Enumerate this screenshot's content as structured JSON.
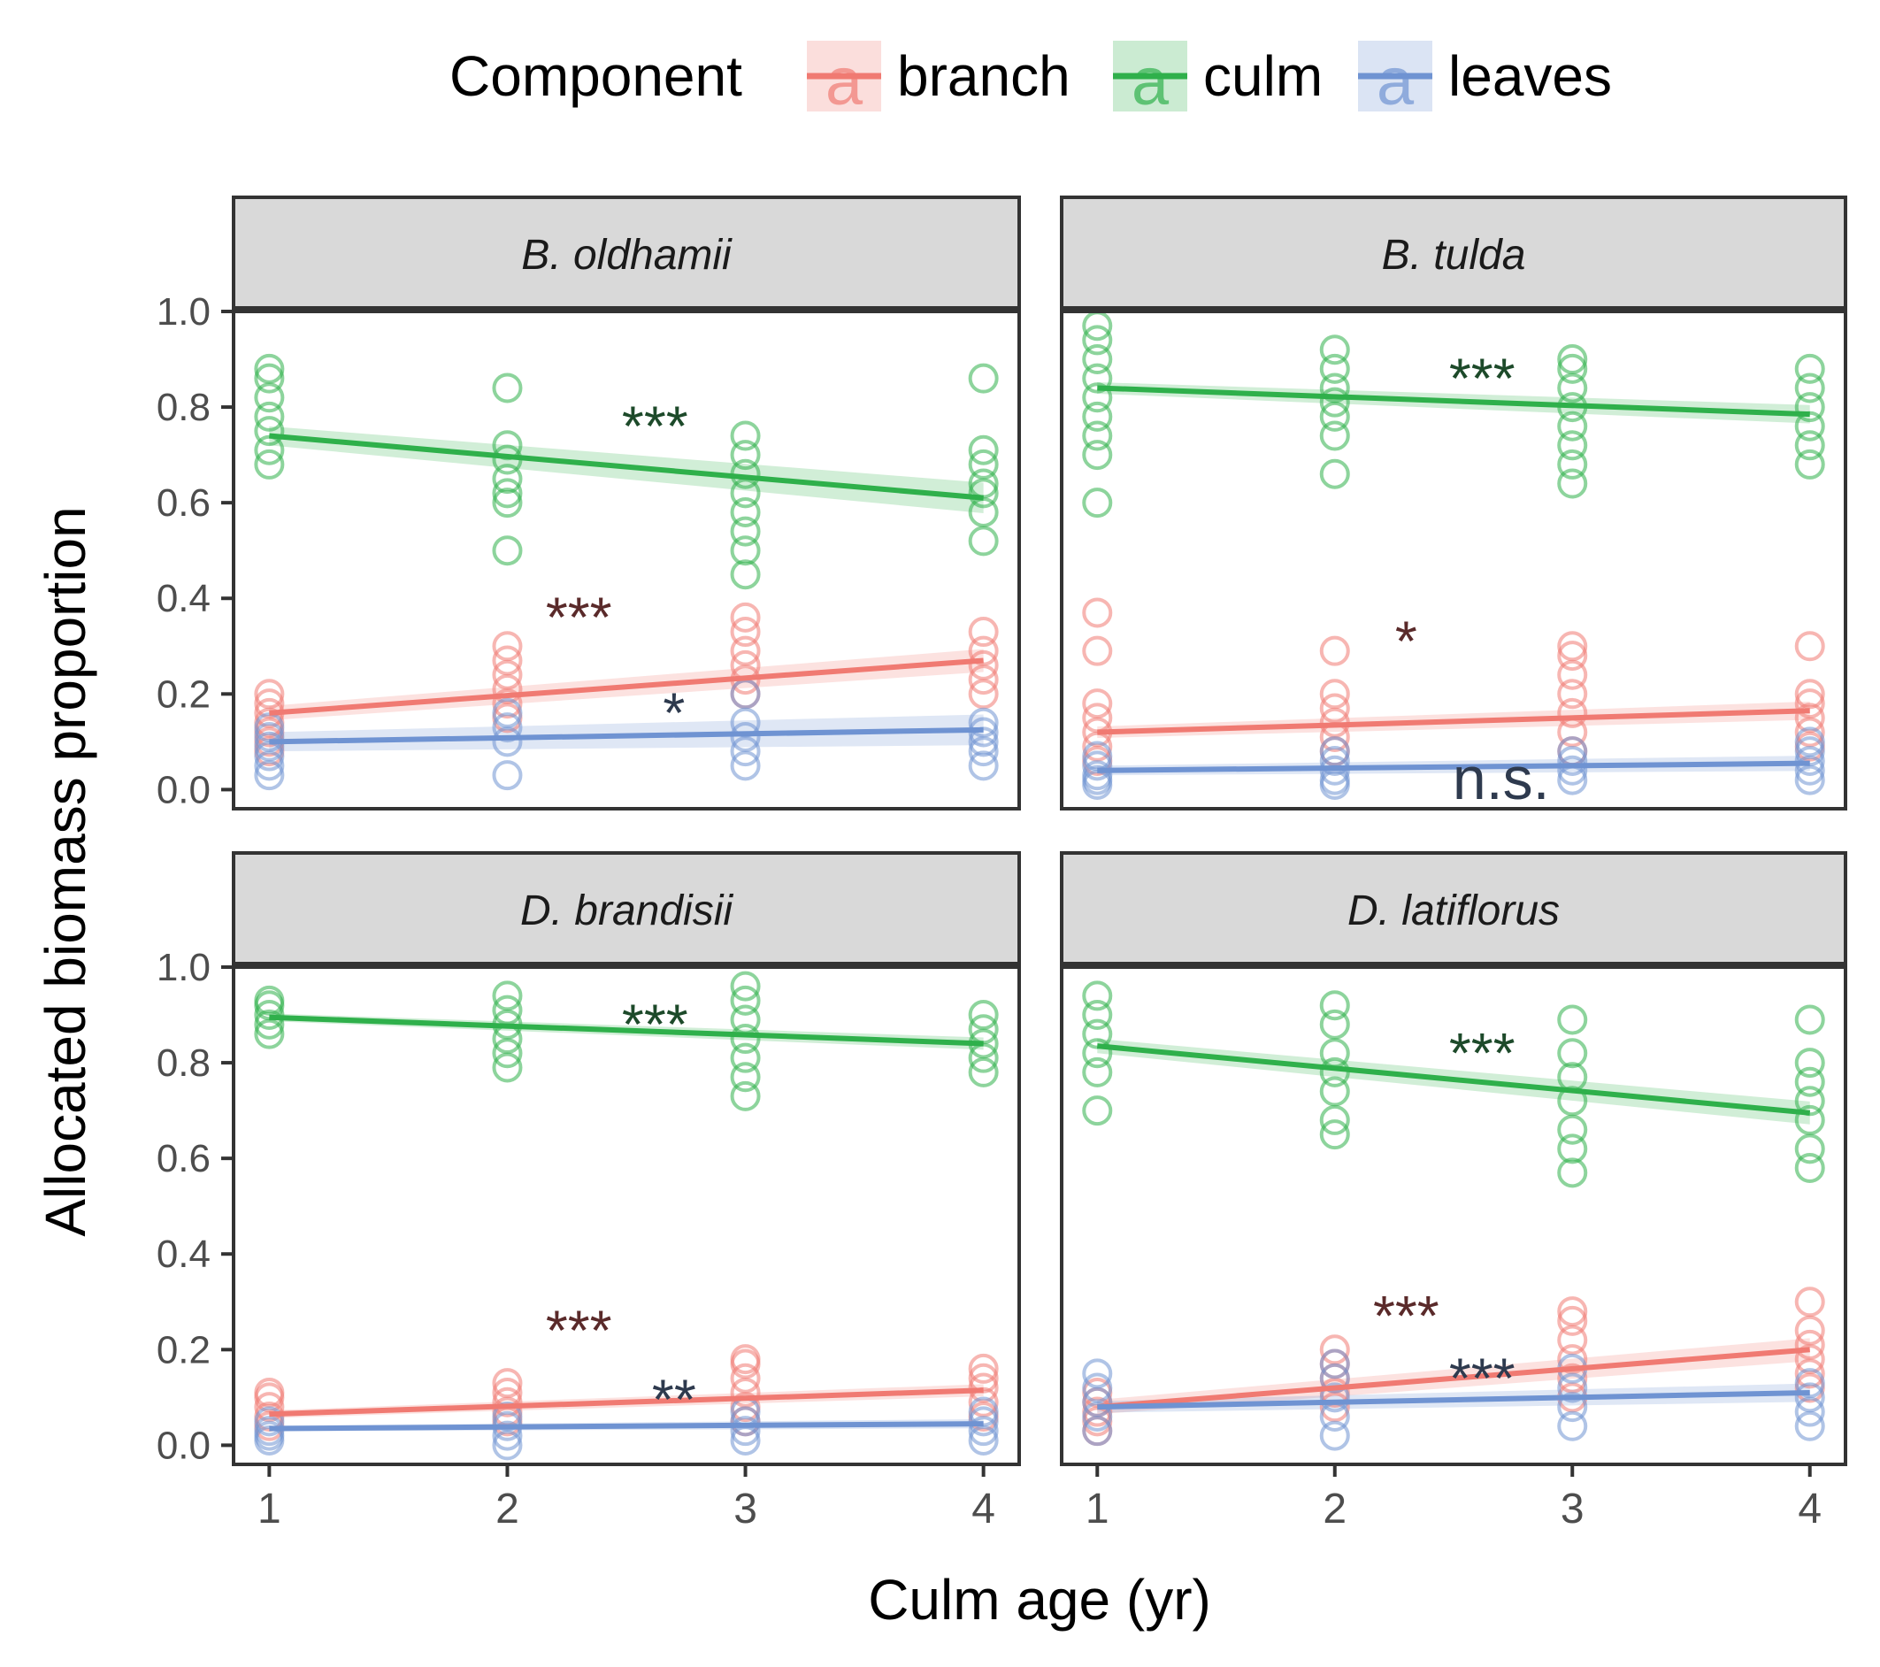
{
  "colors": {
    "branch": "#F07A72",
    "culm": "#2FB04B",
    "leaves": "#6F93D2",
    "strip_fill": "#D9D9D9",
    "frame": "#333333",
    "tick_text": "#4D4D4D",
    "sig_branch": "#5A2A2A",
    "sig_culm": "#1D4A2A",
    "sig_leaves": "#2E3A4E"
  },
  "legend": {
    "title": "Component",
    "key_glyph": "a",
    "items": [
      {
        "key": "branch",
        "label": "branch"
      },
      {
        "key": "culm",
        "label": "culm"
      },
      {
        "key": "leaves",
        "label": "leaves"
      }
    ]
  },
  "axes": {
    "xlabel": "Culm age (yr)",
    "ylabel": "Allocated biomass proportion",
    "xticks": [
      1,
      2,
      3,
      4
    ],
    "xtick_labels": [
      "1",
      "2",
      "3",
      "4"
    ],
    "yticks": [
      0.0,
      0.2,
      0.4,
      0.6,
      0.8,
      1.0
    ],
    "ytick_labels": [
      "0.0",
      "0.2",
      "0.4",
      "0.6",
      "0.8",
      "1.0"
    ],
    "xlim": [
      0.85,
      4.15
    ],
    "ylim": [
      -0.04,
      1.0
    ]
  },
  "chart_data": [
    {
      "type": "scatter",
      "title": "B. oldhamii",
      "series": [
        {
          "name": "branch",
          "points": {
            "1": [
              0.08,
              0.1,
              0.12,
              0.14,
              0.16,
              0.18,
              0.2
            ],
            "2": [
              0.15,
              0.18,
              0.21,
              0.24,
              0.27,
              0.3
            ],
            "3": [
              0.2,
              0.23,
              0.26,
              0.29,
              0.33,
              0.36
            ],
            "4": [
              0.2,
              0.23,
              0.26,
              0.29,
              0.33
            ]
          },
          "fit": [
            0.16,
            0.27
          ],
          "band": 0.015,
          "sig": "***",
          "sig_pos": [
            2.3,
            0.32
          ]
        },
        {
          "name": "culm",
          "points": {
            "1": [
              0.68,
              0.71,
              0.75,
              0.78,
              0.82,
              0.86,
              0.88
            ],
            "2": [
              0.5,
              0.6,
              0.62,
              0.65,
              0.69,
              0.72,
              0.84
            ],
            "3": [
              0.45,
              0.5,
              0.54,
              0.58,
              0.62,
              0.66,
              0.7,
              0.74
            ],
            "4": [
              0.52,
              0.58,
              0.62,
              0.64,
              0.68,
              0.71,
              0.86
            ]
          },
          "fit": [
            0.74,
            0.61
          ],
          "band": 0.02,
          "sig": "***",
          "sig_pos": [
            2.62,
            0.72
          ]
        },
        {
          "name": "leaves",
          "points": {
            "1": [
              0.03,
              0.05,
              0.07,
              0.09,
              0.11,
              0.13
            ],
            "2": [
              0.03,
              0.1,
              0.13,
              0.16
            ],
            "3": [
              0.05,
              0.08,
              0.11,
              0.14,
              0.2
            ],
            "4": [
              0.05,
              0.08,
              0.1,
              0.12,
              0.14
            ]
          },
          "fit": [
            0.1,
            0.125
          ],
          "band": 0.02,
          "sig": "*",
          "sig_pos": [
            2.7,
            0.12
          ]
        }
      ]
    },
    {
      "type": "scatter",
      "title": "B. tulda",
      "series": [
        {
          "name": "branch",
          "points": {
            "1": [
              0.06,
              0.09,
              0.12,
              0.15,
              0.18,
              0.29,
              0.37
            ],
            "2": [
              0.08,
              0.11,
              0.14,
              0.17,
              0.2,
              0.29
            ],
            "3": [
              0.08,
              0.12,
              0.16,
              0.2,
              0.24,
              0.28,
              0.3
            ],
            "4": [
              0.09,
              0.12,
              0.15,
              0.18,
              0.2,
              0.3
            ]
          },
          "fit": [
            0.12,
            0.165
          ],
          "band": 0.012,
          "sig": "*",
          "sig_pos": [
            2.3,
            0.27
          ]
        },
        {
          "name": "culm",
          "points": {
            "1": [
              0.6,
              0.7,
              0.74,
              0.78,
              0.82,
              0.86,
              0.9,
              0.94,
              0.97
            ],
            "2": [
              0.66,
              0.74,
              0.78,
              0.81,
              0.84,
              0.88,
              0.92
            ],
            "3": [
              0.64,
              0.68,
              0.72,
              0.76,
              0.8,
              0.84,
              0.88,
              0.9
            ],
            "4": [
              0.68,
              0.72,
              0.76,
              0.8,
              0.84,
              0.88
            ]
          },
          "fit": [
            0.84,
            0.785
          ],
          "band": 0.012,
          "sig": "***",
          "sig_pos": [
            2.62,
            0.82
          ]
        },
        {
          "name": "leaves",
          "points": {
            "1": [
              0.01,
              0.02,
              0.03,
              0.05,
              0.07
            ],
            "2": [
              0.01,
              0.02,
              0.04,
              0.06,
              0.08
            ],
            "3": [
              0.02,
              0.04,
              0.06,
              0.08
            ],
            "4": [
              0.02,
              0.04,
              0.06,
              0.08,
              0.1
            ]
          },
          "fit": [
            0.04,
            0.055
          ],
          "band": 0.01,
          "sig": "n.s.",
          "sig_pos": [
            2.7,
            -0.02
          ]
        }
      ]
    },
    {
      "type": "scatter",
      "title": "D. brandisii",
      "series": [
        {
          "name": "branch",
          "points": {
            "1": [
              0.04,
              0.06,
              0.08,
              0.1,
              0.11
            ],
            "2": [
              0.05,
              0.07,
              0.09,
              0.11,
              0.13
            ],
            "3": [
              0.05,
              0.08,
              0.11,
              0.14,
              0.17,
              0.18
            ],
            "4": [
              0.06,
              0.09,
              0.12,
              0.14,
              0.16
            ]
          },
          "fit": [
            0.065,
            0.115
          ],
          "band": 0.008,
          "sig": "***",
          "sig_pos": [
            2.3,
            0.2
          ]
        },
        {
          "name": "culm",
          "points": {
            "1": [
              0.86,
              0.88,
              0.9,
              0.92,
              0.93
            ],
            "2": [
              0.79,
              0.82,
              0.85,
              0.88,
              0.91,
              0.94
            ],
            "3": [
              0.73,
              0.77,
              0.81,
              0.85,
              0.89,
              0.93,
              0.96
            ],
            "4": [
              0.78,
              0.81,
              0.84,
              0.87,
              0.9
            ]
          },
          "fit": [
            0.895,
            0.84
          ],
          "band": 0.008,
          "sig": "***",
          "sig_pos": [
            2.62,
            0.84
          ]
        },
        {
          "name": "leaves",
          "points": {
            "1": [
              0.01,
              0.02,
              0.03,
              0.05
            ],
            "2": [
              0.0,
              0.02,
              0.04,
              0.06
            ],
            "3": [
              0.01,
              0.03,
              0.05,
              0.07
            ],
            "4": [
              0.01,
              0.03,
              0.05,
              0.07
            ]
          },
          "fit": [
            0.035,
            0.045
          ],
          "band": 0.006,
          "sig": "**",
          "sig_pos": [
            2.7,
            0.055
          ]
        }
      ]
    },
    {
      "type": "scatter",
      "title": "D. latiflorus",
      "series": [
        {
          "name": "branch",
          "points": {
            "1": [
              0.03,
              0.05,
              0.07,
              0.09,
              0.11
            ],
            "2": [
              0.08,
              0.11,
              0.14,
              0.17,
              0.2
            ],
            "3": [
              0.1,
              0.14,
              0.18,
              0.22,
              0.26,
              0.28
            ],
            "4": [
              0.12,
              0.15,
              0.18,
              0.21,
              0.24,
              0.3
            ]
          },
          "fit": [
            0.08,
            0.2
          ],
          "band": 0.015,
          "sig": "***",
          "sig_pos": [
            2.3,
            0.23
          ]
        },
        {
          "name": "culm",
          "points": {
            "1": [
              0.7,
              0.78,
              0.82,
              0.86,
              0.9,
              0.94
            ],
            "2": [
              0.65,
              0.68,
              0.74,
              0.78,
              0.82,
              0.88,
              0.92
            ],
            "3": [
              0.57,
              0.62,
              0.66,
              0.72,
              0.77,
              0.82,
              0.89
            ],
            "4": [
              0.58,
              0.62,
              0.68,
              0.72,
              0.76,
              0.8,
              0.89
            ]
          },
          "fit": [
            0.835,
            0.695
          ],
          "band": 0.015,
          "sig": "***",
          "sig_pos": [
            2.62,
            0.78
          ]
        },
        {
          "name": "leaves",
          "points": {
            "1": [
              0.03,
              0.06,
              0.09,
              0.12,
              0.15
            ],
            "2": [
              0.02,
              0.06,
              0.1,
              0.14,
              0.17
            ],
            "3": [
              0.04,
              0.08,
              0.12,
              0.16
            ],
            "4": [
              0.04,
              0.07,
              0.1,
              0.13
            ]
          },
          "fit": [
            0.08,
            0.11
          ],
          "band": 0.012,
          "sig": "***",
          "sig_pos": [
            2.62,
            0.1
          ]
        }
      ]
    }
  ]
}
